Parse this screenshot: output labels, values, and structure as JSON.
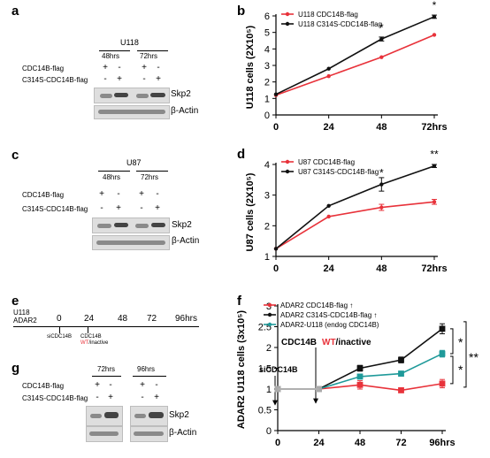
{
  "panels": {
    "a": {
      "letter": "a",
      "cell_line": "U118",
      "timepoints": [
        "48hrs",
        "72hrs"
      ],
      "rows": [
        {
          "label": "CDC14B-flag",
          "signs": [
            "+",
            "-",
            "+",
            "-"
          ]
        },
        {
          "label": "C314S-CDC14B-flag",
          "signs": [
            "-",
            "+",
            "-",
            "+"
          ]
        }
      ],
      "bands": [
        "Skp2",
        "β-Actin"
      ]
    },
    "c": {
      "letter": "c",
      "cell_line": "U87",
      "timepoints": [
        "48hrs",
        "72hrs"
      ],
      "rows": [
        {
          "label": "CDC14B-flag",
          "signs": [
            "+",
            "-",
            "+",
            "-"
          ]
        },
        {
          "label": "C314S-CDC14B-flag",
          "signs": [
            "-",
            "+",
            "-",
            "+"
          ]
        }
      ],
      "bands": [
        "Skp2",
        "β-Actin"
      ]
    },
    "e": {
      "letter": "e",
      "cell_line": "U118",
      "line2": "ADAR2",
      "timeline": [
        "0",
        "24",
        "48",
        "72",
        "96hrs"
      ],
      "event1": "siCDC14B",
      "event2_line1": "CDC14B",
      "event2_wt": "WT",
      "event2_rest": "/inactive"
    },
    "g": {
      "letter": "g",
      "timepoints": [
        "72hrs",
        "96hrs"
      ],
      "rows": [
        {
          "label": "CDC14B-flag",
          "signs": [
            "+",
            "-",
            "+",
            "-"
          ]
        },
        {
          "label": "C314S-CDC14B-flag",
          "signs": [
            "-",
            "+",
            "-",
            "+"
          ]
        }
      ],
      "bands": [
        "Skp2",
        "β-Actin"
      ]
    },
    "b": {
      "letter": "b"
    },
    "d": {
      "letter": "d"
    },
    "f": {
      "letter": "f",
      "annotation_cdc14b": "CDC14B",
      "annotation_wt": "WT",
      "annotation_inactive": "/inactive",
      "annotation_si": "siCDC14B"
    }
  },
  "chart_data": [
    {
      "panel": "b",
      "type": "line",
      "x": [
        0,
        24,
        48,
        72
      ],
      "xticks": [
        "0",
        "24",
        "48",
        "72hrs"
      ],
      "ylabel": "U118 cells (2X10⁵)",
      "ylim": [
        0,
        6
      ],
      "yticks": [
        "0",
        "1",
        "2",
        "3",
        "4",
        "5",
        "6"
      ],
      "series": [
        {
          "name": "U118 CDC14B-flag",
          "color": "#e8323a",
          "values": [
            1.2,
            2.35,
            3.5,
            4.85
          ]
        },
        {
          "name": "U118 C314S-CDC14B-flag",
          "color": "#111111",
          "values": [
            1.25,
            2.8,
            4.6,
            5.95
          ]
        }
      ],
      "significance": [
        {
          "x": 48,
          "label": "*"
        },
        {
          "x": 72,
          "label": "*"
        }
      ],
      "legend": "top-left"
    },
    {
      "panel": "d",
      "type": "line",
      "x": [
        0,
        24,
        48,
        72
      ],
      "xticks": [
        "0",
        "24",
        "48",
        "72hrs"
      ],
      "ylabel": "U87 cells (2X10⁵)",
      "ylim": [
        1,
        4
      ],
      "yticks": [
        "1",
        "2",
        "3",
        "4"
      ],
      "series": [
        {
          "name": "U87 CDC14B-flag",
          "color": "#e8323a",
          "values": [
            1.25,
            2.3,
            2.6,
            2.78
          ]
        },
        {
          "name": "U87 C314S-CDC14B-flag",
          "color": "#111111",
          "values": [
            1.25,
            2.65,
            3.35,
            3.95
          ]
        }
      ],
      "significance": [
        {
          "x": 48,
          "label": "*"
        },
        {
          "x": 72,
          "label": "**"
        }
      ],
      "legend": "top-left"
    },
    {
      "panel": "f",
      "type": "line",
      "x": [
        0,
        24,
        48,
        72,
        96
      ],
      "xticks": [
        "0",
        "24",
        "48",
        "72",
        "96hrs"
      ],
      "ylabel": "ADAR2 U118 cells (3x10⁵)",
      "ylim": [
        0,
        3
      ],
      "yticks": [
        "0",
        "0.5",
        "1",
        "1.5",
        "2",
        "2.5",
        "3"
      ],
      "series": [
        {
          "name": "ADAR2 CDC14B-flag ↑",
          "color": "#e8323a",
          "values": [
            1.0,
            1.0,
            1.1,
            0.97,
            1.13
          ]
        },
        {
          "name": "ADAR2 C314S-CDC14B-flag ↑",
          "color": "#111111",
          "values": [
            1.0,
            1.0,
            1.5,
            1.7,
            2.45
          ]
        },
        {
          "name": "ADAR2-U118 (endog CDC14B)",
          "color": "#1f9a9a",
          "values": [
            1.0,
            1.0,
            1.3,
            1.37,
            1.85
          ]
        }
      ],
      "significance": [
        "*",
        "*",
        "**"
      ],
      "legend": "top-left"
    }
  ]
}
